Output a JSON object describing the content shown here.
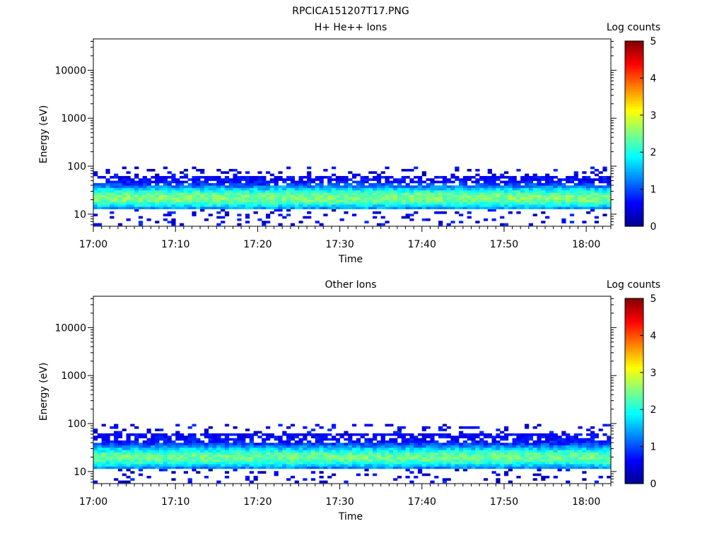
{
  "figure_title": "RPCICA151207T17.PNG",
  "chart_data": [
    {
      "type": "heatmap",
      "title": "H+ He++ Ions",
      "xlabel": "Time",
      "ylabel": "Energy (eV)",
      "colorbar_label": "Log counts",
      "colorbar_ticks": [
        "0",
        "1",
        "2",
        "3",
        "4",
        "5"
      ],
      "colorbar_range": [
        0,
        5
      ],
      "y_scale": "log",
      "ylim": [
        5.6,
        45000
      ],
      "y_tick_labels": [
        "10",
        "100",
        "1000",
        "10000"
      ],
      "xlim": [
        "17:00",
        "18:03"
      ],
      "x_tick_labels": [
        "17:00",
        "17:10",
        "17:20",
        "17:30",
        "17:40",
        "17:50",
        "18:00"
      ],
      "time_bin_minutes": 0.5,
      "band": {
        "dense_energy_range_eV": [
          13,
          60
        ],
        "peak_energy_eV": 22,
        "peak_log_counts": 2.5,
        "sparse_energy_range_eV": [
          6,
          100
        ]
      }
    },
    {
      "type": "heatmap",
      "title": "Other Ions",
      "xlabel": "Time",
      "ylabel": "Energy (eV)",
      "colorbar_label": "Log counts",
      "colorbar_ticks": [
        "0",
        "1",
        "2",
        "3",
        "4",
        "5"
      ],
      "colorbar_range": [
        0,
        5
      ],
      "y_scale": "log",
      "ylim": [
        5.6,
        45000
      ],
      "y_tick_labels": [
        "10",
        "100",
        "1000",
        "10000"
      ],
      "xlim": [
        "17:00",
        "18:03"
      ],
      "x_tick_labels": [
        "17:00",
        "17:10",
        "17:20",
        "17:30",
        "17:40",
        "17:50",
        "18:00"
      ],
      "time_bin_minutes": 0.5,
      "band": {
        "dense_energy_range_eV": [
          11,
          60
        ],
        "peak_energy_eV": 20,
        "peak_log_counts": 2.4,
        "sparse_energy_range_eV": [
          6,
          95
        ]
      }
    }
  ],
  "colors": {
    "colormap": [
      "#00008f",
      "#0000ff",
      "#0080ff",
      "#00ffff",
      "#80ff80",
      "#ffff00",
      "#ff8000",
      "#ff0000",
      "#800000"
    ]
  }
}
